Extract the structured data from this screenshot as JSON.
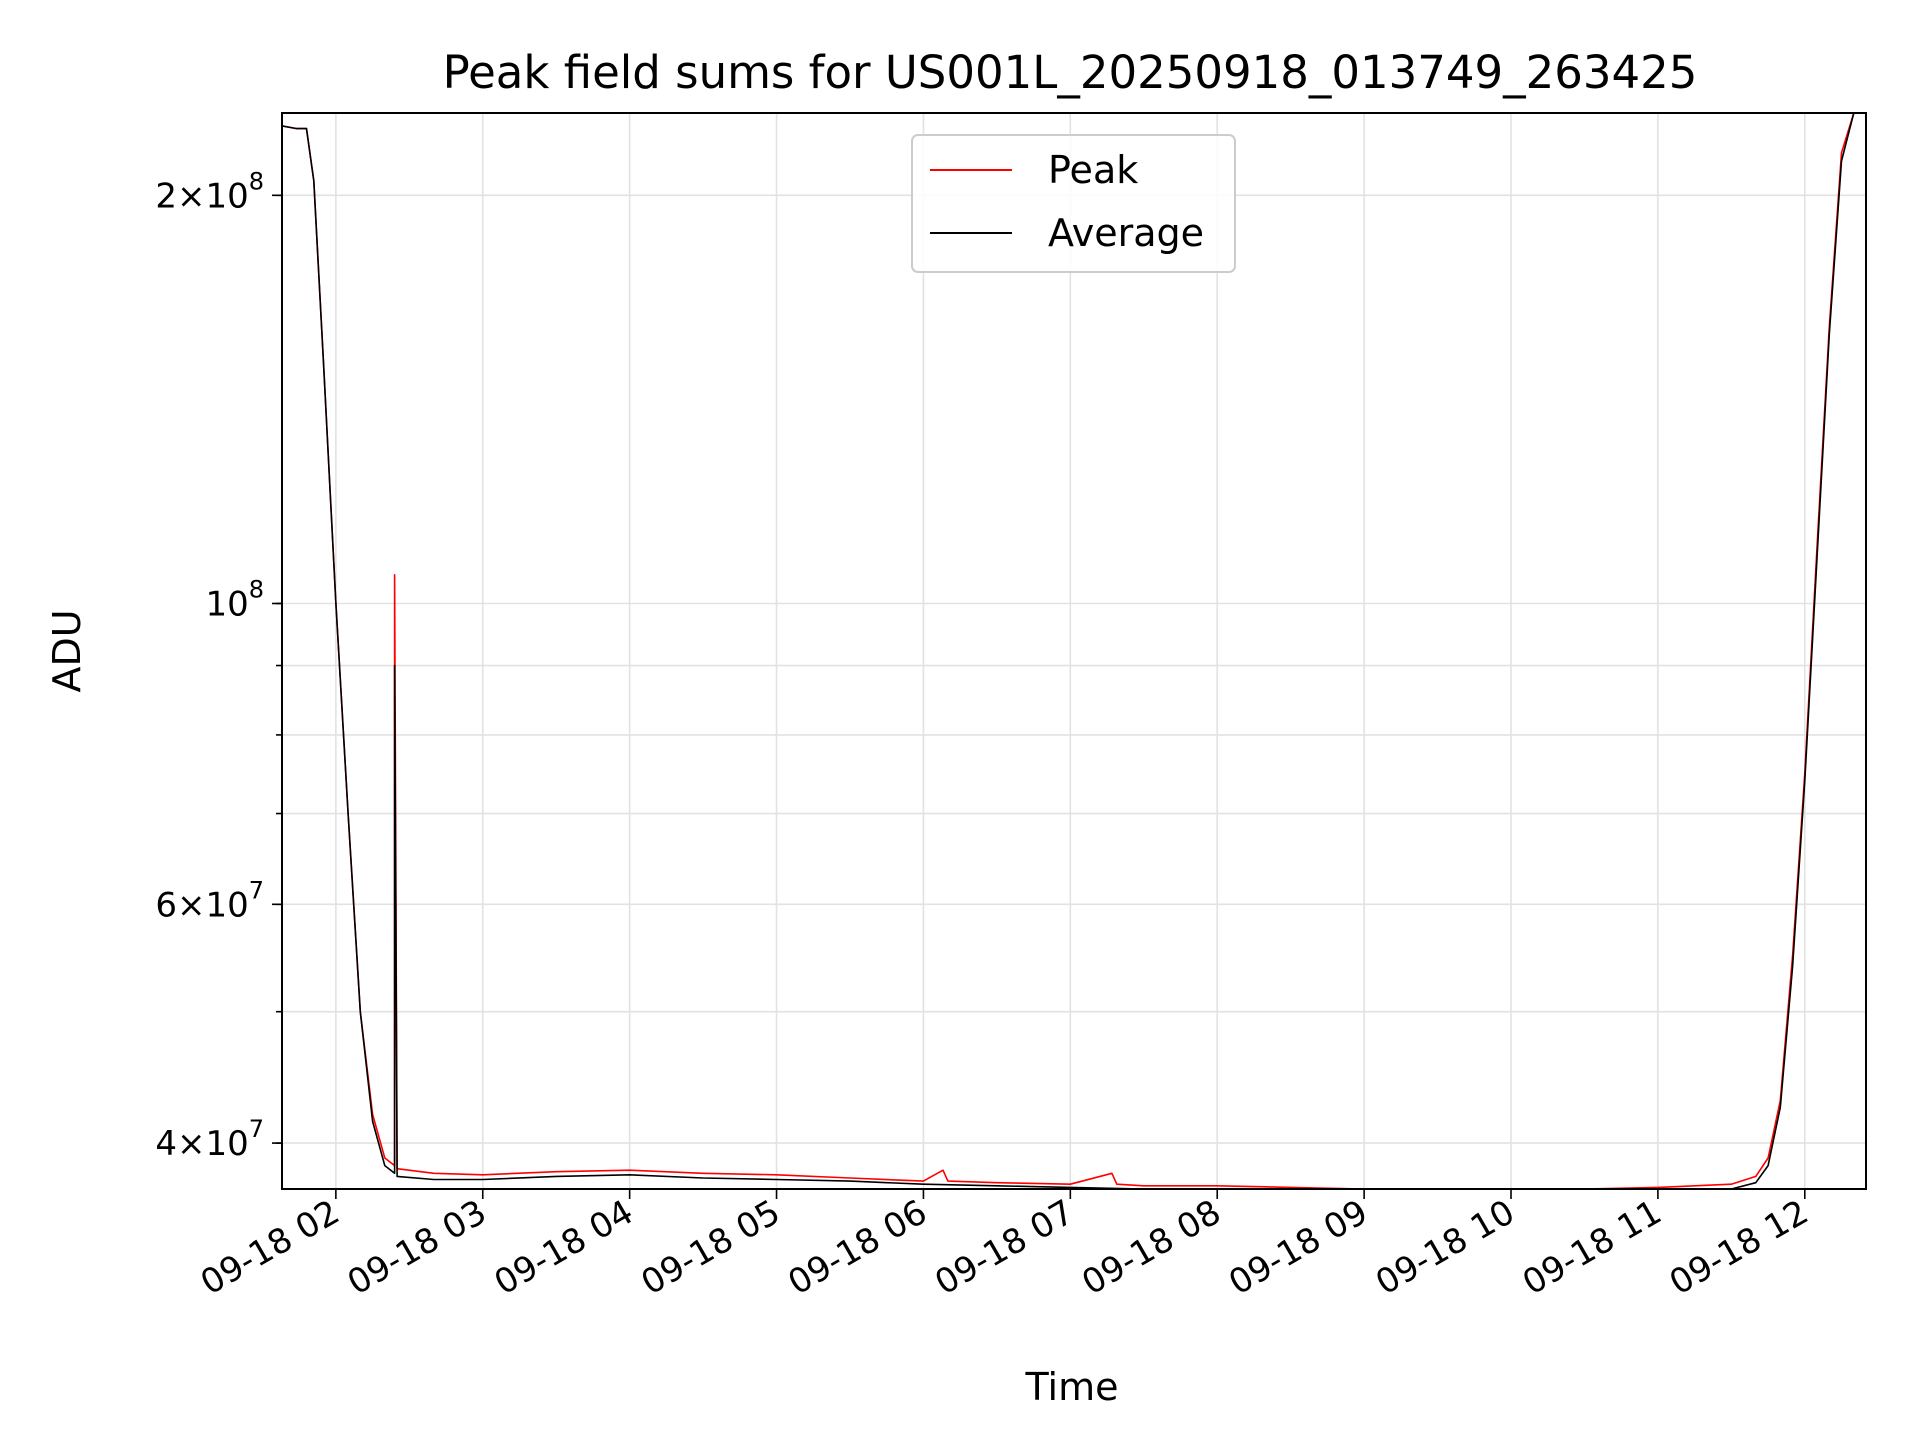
{
  "chart_data": {
    "type": "line",
    "title": "Peak field sums for US001L_20250918_013749_263425",
    "xlabel": "Time",
    "ylabel": "ADU",
    "y_scale": "log",
    "xlim": [
      "2025-09-18 01:38",
      "2025-09-18 12:25"
    ],
    "ylim": [
      37000000,
      230000000
    ],
    "grid": true,
    "legend_position": "top-center",
    "x_ticks": [
      "09-18 02",
      "09-18 03",
      "09-18 04",
      "09-18 05",
      "09-18 06",
      "09-18 07",
      "09-18 08",
      "09-18 09",
      "09-18 10",
      "09-18 11",
      "09-18 12"
    ],
    "y_ticks": [
      {
        "value": 40000000,
        "mantissa": "4",
        "exponent": "7"
      },
      {
        "value": 60000000,
        "mantissa": "6",
        "exponent": "7"
      },
      {
        "value": 100000000,
        "mantissa": "",
        "exponent": "8"
      },
      {
        "value": 200000000,
        "mantissa": "2",
        "exponent": "8"
      }
    ],
    "series": [
      {
        "name": "Peak",
        "color": "#ff0000",
        "points": [
          [
            "2025-09-18 01:38",
            225000000
          ],
          [
            "2025-09-18 01:44",
            224000000
          ],
          [
            "2025-09-18 01:48",
            224000000
          ],
          [
            "2025-09-18 01:51",
            205000000
          ],
          [
            "2025-09-18 01:55",
            150000000
          ],
          [
            "2025-09-18 02:00",
            100000000
          ],
          [
            "2025-09-18 02:05",
            70000000
          ],
          [
            "2025-09-18 02:10",
            50000000
          ],
          [
            "2025-09-18 02:15",
            42000000
          ],
          [
            "2025-09-18 02:20",
            39000000
          ],
          [
            "2025-09-18 02:24",
            38500000
          ],
          [
            "2025-09-18 02:24",
            105000000
          ],
          [
            "2025-09-18 02:25",
            38300000
          ],
          [
            "2025-09-18 02:40",
            38000000
          ],
          [
            "2025-09-18 03:00",
            37900000
          ],
          [
            "2025-09-18 03:30",
            38100000
          ],
          [
            "2025-09-18 04:00",
            38200000
          ],
          [
            "2025-09-18 04:30",
            38000000
          ],
          [
            "2025-09-18 05:00",
            37900000
          ],
          [
            "2025-09-18 05:30",
            37700000
          ],
          [
            "2025-09-18 06:00",
            37500000
          ],
          [
            "2025-09-18 06:08",
            38200000
          ],
          [
            "2025-09-18 06:10",
            37500000
          ],
          [
            "2025-09-18 06:30",
            37400000
          ],
          [
            "2025-09-18 07:00",
            37300000
          ],
          [
            "2025-09-18 07:17",
            38000000
          ],
          [
            "2025-09-18 07:19",
            37300000
          ],
          [
            "2025-09-18 07:30",
            37200000
          ],
          [
            "2025-09-18 08:00",
            37200000
          ],
          [
            "2025-09-18 08:30",
            37100000
          ],
          [
            "2025-09-18 09:00",
            37000000
          ],
          [
            "2025-09-18 09:30",
            37000000
          ],
          [
            "2025-09-18 10:00",
            37000000
          ],
          [
            "2025-09-18 10:30",
            37000000
          ],
          [
            "2025-09-18 11:00",
            37100000
          ],
          [
            "2025-09-18 11:30",
            37300000
          ],
          [
            "2025-09-18 11:40",
            37800000
          ],
          [
            "2025-09-18 11:45",
            39000000
          ],
          [
            "2025-09-18 11:50",
            43000000
          ],
          [
            "2025-09-18 11:55",
            55000000
          ],
          [
            "2025-09-18 12:00",
            75000000
          ],
          [
            "2025-09-18 12:05",
            110000000
          ],
          [
            "2025-09-18 12:10",
            160000000
          ],
          [
            "2025-09-18 12:15",
            215000000
          ],
          [
            "2025-09-18 12:20",
            230000000
          ]
        ]
      },
      {
        "name": "Average",
        "color": "#000000",
        "points": [
          [
            "2025-09-18 01:38",
            225000000
          ],
          [
            "2025-09-18 01:44",
            224000000
          ],
          [
            "2025-09-18 01:48",
            224000000
          ],
          [
            "2025-09-18 01:51",
            205000000
          ],
          [
            "2025-09-18 01:55",
            150000000
          ],
          [
            "2025-09-18 02:00",
            100000000
          ],
          [
            "2025-09-18 02:05",
            70000000
          ],
          [
            "2025-09-18 02:10",
            50000000
          ],
          [
            "2025-09-18 02:15",
            41500000
          ],
          [
            "2025-09-18 02:20",
            38500000
          ],
          [
            "2025-09-18 02:24",
            38000000
          ],
          [
            "2025-09-18 02:24",
            90000000
          ],
          [
            "2025-09-18 02:25",
            37800000
          ],
          [
            "2025-09-18 02:40",
            37600000
          ],
          [
            "2025-09-18 03:00",
            37600000
          ],
          [
            "2025-09-18 03:30",
            37800000
          ],
          [
            "2025-09-18 04:00",
            37900000
          ],
          [
            "2025-09-18 04:30",
            37700000
          ],
          [
            "2025-09-18 05:00",
            37600000
          ],
          [
            "2025-09-18 05:30",
            37500000
          ],
          [
            "2025-09-18 06:00",
            37300000
          ],
          [
            "2025-09-18 06:30",
            37200000
          ],
          [
            "2025-09-18 07:00",
            37100000
          ],
          [
            "2025-09-18 07:30",
            37000000
          ],
          [
            "2025-09-18 08:00",
            37000000
          ],
          [
            "2025-09-18 08:30",
            36900000
          ],
          [
            "2025-09-18 09:00",
            36800000
          ],
          [
            "2025-09-18 09:30",
            36800000
          ],
          [
            "2025-09-18 10:00",
            36800000
          ],
          [
            "2025-09-18 10:30",
            36800000
          ],
          [
            "2025-09-18 11:00",
            36900000
          ],
          [
            "2025-09-18 11:30",
            37000000
          ],
          [
            "2025-09-18 11:40",
            37400000
          ],
          [
            "2025-09-18 11:45",
            38500000
          ],
          [
            "2025-09-18 11:50",
            42500000
          ],
          [
            "2025-09-18 11:55",
            54000000
          ],
          [
            "2025-09-18 12:00",
            74000000
          ],
          [
            "2025-09-18 12:05",
            108000000
          ],
          [
            "2025-09-18 12:10",
            158000000
          ],
          [
            "2025-09-18 12:15",
            212000000
          ],
          [
            "2025-09-18 12:20",
            230000000
          ]
        ]
      }
    ]
  }
}
